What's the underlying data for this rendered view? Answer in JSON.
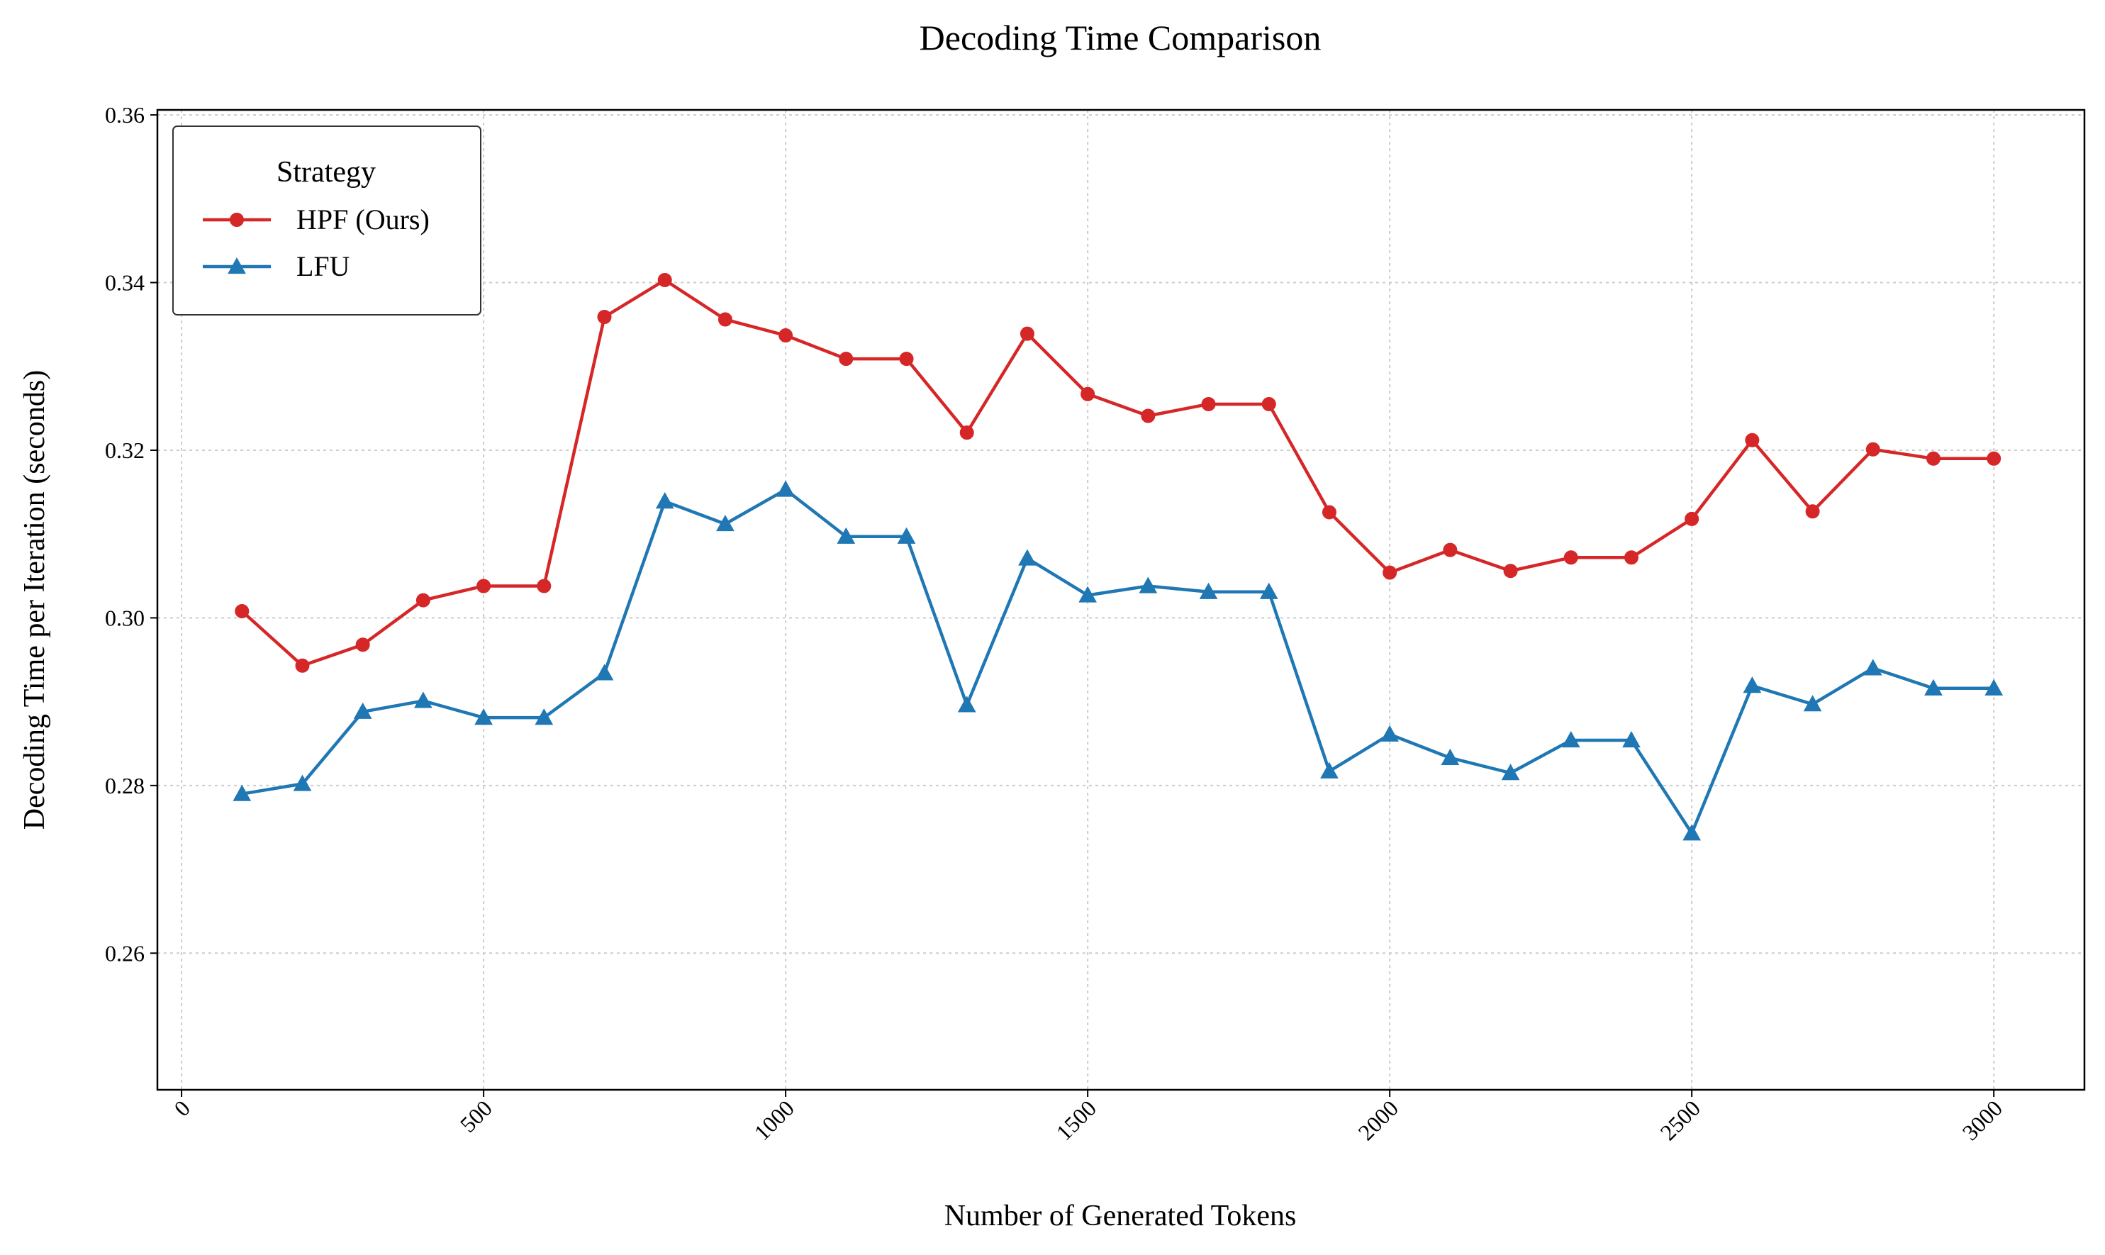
{
  "chart_data": {
    "type": "line",
    "title": "Decoding Time Comparison",
    "xlabel": "Number of Generated Tokens",
    "ylabel": "Decoding Time per Iteration (seconds)",
    "xlim": [
      -40,
      3150
    ],
    "ylim": [
      0.2437,
      0.3606
    ],
    "xticks": [
      0,
      500,
      1000,
      1500,
      2000,
      2500,
      3000
    ],
    "xtick_labels": [
      "0",
      "500",
      "1000",
      "1500",
      "2000",
      "2500",
      "3000"
    ],
    "yticks": [
      0.26,
      0.28,
      0.3,
      0.32,
      0.34,
      0.36
    ],
    "ytick_labels": [
      "0.26",
      "0.28",
      "0.30",
      "0.32",
      "0.34",
      "0.36"
    ],
    "grid": true,
    "legend": {
      "title": "Strategy",
      "placement": "top-left"
    },
    "x": [
      100,
      200,
      300,
      400,
      500,
      600,
      700,
      800,
      900,
      1000,
      1100,
      1200,
      1300,
      1400,
      1500,
      1600,
      1700,
      1800,
      1900,
      2000,
      2100,
      2200,
      2300,
      2400,
      2500,
      2600,
      2700,
      2800,
      2900,
      3000
    ],
    "series": [
      {
        "name": "HPF (Ours)",
        "color": "#d62728",
        "marker": "circle",
        "values": [
          0.3008,
          0.2943,
          0.2968,
          0.3021,
          0.3038,
          0.3038,
          0.3359,
          0.3403,
          0.3356,
          0.3337,
          0.3309,
          0.3309,
          0.3221,
          0.3339,
          0.3267,
          0.3241,
          0.3255,
          0.3255,
          0.3126,
          0.3054,
          0.3081,
          0.3056,
          0.3072,
          0.3072,
          0.3118,
          0.3212,
          0.3127,
          0.3201,
          0.319,
          0.319
        ]
      },
      {
        "name": "LFU",
        "color": "#1f77b4",
        "marker": "triangle",
        "values": [
          0.279,
          0.2802,
          0.2888,
          0.2901,
          0.2881,
          0.2881,
          0.2934,
          0.3139,
          0.3112,
          0.3153,
          0.3097,
          0.3097,
          0.2896,
          0.3071,
          0.3027,
          0.3038,
          0.3031,
          0.3031,
          0.2817,
          0.2861,
          0.2833,
          0.2815,
          0.2854,
          0.2854,
          0.2743,
          0.2919,
          0.2897,
          0.294,
          0.2916,
          0.2916
        ]
      }
    ]
  }
}
